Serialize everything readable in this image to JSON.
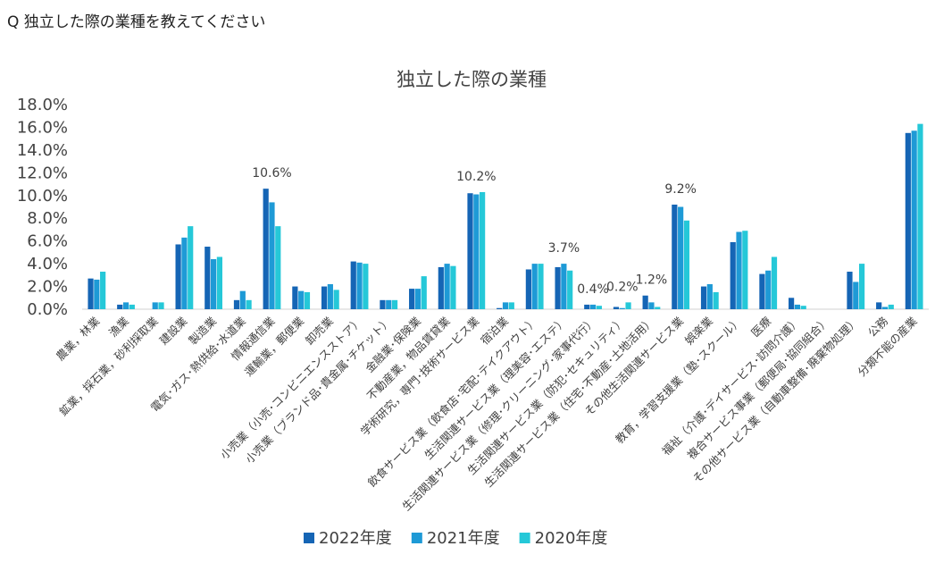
{
  "question": "Q 独立した際の業種を教えてください",
  "chart_data": {
    "type": "bar",
    "title": "独立した際の業種",
    "xlabel": "",
    "ylabel": "",
    "ylim": [
      0,
      18
    ],
    "y_ticks": [
      "0.0%",
      "2.0%",
      "4.0%",
      "6.0%",
      "8.0%",
      "10.0%",
      "12.0%",
      "14.0%",
      "16.0%",
      "18.0%"
    ],
    "grid": false,
    "legend_position": "bottom",
    "categories": [
      "農業，林業",
      "漁業",
      "鉱業，採石業，砂利採取業",
      "建設業",
      "製造業",
      "電気･ガス･熱供給･水道業",
      "情報通信業",
      "運輸業，郵便業",
      "卸売業",
      "小売業（小売･コンビニエンスストア）",
      "小売業（ブランド品･貴金属･チケット）",
      "金融業･保険業",
      "不動産業，物品賃貸業",
      "学術研究，専門･技術サービス業",
      "宿泊業",
      "飲食サービス業（飲食店･宅配･テイクアウト）",
      "生活関連サービス業（理美容･エステ）",
      "生活関連サービス業（修理･クリーニング･家事代行）",
      "生活関連サービス業（防犯･セキュリティ）",
      "生活関連サービス業（住宅･不動産･土地活用）",
      "その他生活関連サービス業",
      "娯楽業",
      "教育，学習支援業（塾･スクール）",
      "医療",
      "福祉（介護･デイサービス･訪問介護）",
      "複合サービス事業（郵便局･協同組合）",
      "その他サービス業（自動車整備･廃棄物処理）",
      "公務",
      "分類不能の産業"
    ],
    "series": [
      {
        "name": "2022年度",
        "color": "#1565b5",
        "values": [
          2.7,
          0.4,
          0.0,
          5.7,
          5.5,
          0.8,
          10.6,
          2.0,
          2.0,
          4.2,
          0.8,
          1.8,
          3.7,
          10.2,
          0.1,
          3.5,
          3.7,
          0.4,
          0.2,
          1.2,
          9.2,
          2.0,
          5.9,
          3.1,
          1.0,
          0.0,
          3.3,
          0.6,
          15.5
        ]
      },
      {
        "name": "2021年度",
        "color": "#1e9ad6",
        "values": [
          2.6,
          0.6,
          0.6,
          6.3,
          4.4,
          1.6,
          9.4,
          1.6,
          2.2,
          4.1,
          0.8,
          1.8,
          4.0,
          10.1,
          0.6,
          4.0,
          4.0,
          0.4,
          0.1,
          0.6,
          9.0,
          2.2,
          6.8,
          3.4,
          0.4,
          0.0,
          2.4,
          0.2,
          15.7
        ]
      },
      {
        "name": "2020年度",
        "color": "#25c8d8",
        "values": [
          3.3,
          0.4,
          0.6,
          7.3,
          4.6,
          0.8,
          7.3,
          1.5,
          1.7,
          4.0,
          0.8,
          2.9,
          3.8,
          10.3,
          0.6,
          4.0,
          3.4,
          0.3,
          0.6,
          0.2,
          7.8,
          1.5,
          6.9,
          4.6,
          0.3,
          0.0,
          4.0,
          0.4,
          16.3
        ]
      }
    ],
    "annotations": [
      {
        "category_index": 6,
        "text": "10.6%"
      },
      {
        "category_index": 13,
        "text": "10.2%"
      },
      {
        "category_index": 16,
        "text": "3.7%"
      },
      {
        "category_index": 17,
        "text": "0.4%"
      },
      {
        "category_index": 18,
        "text": "0.2%"
      },
      {
        "category_index": 19,
        "text": "1.2%"
      },
      {
        "category_index": 20,
        "text": "9.2%"
      }
    ]
  }
}
